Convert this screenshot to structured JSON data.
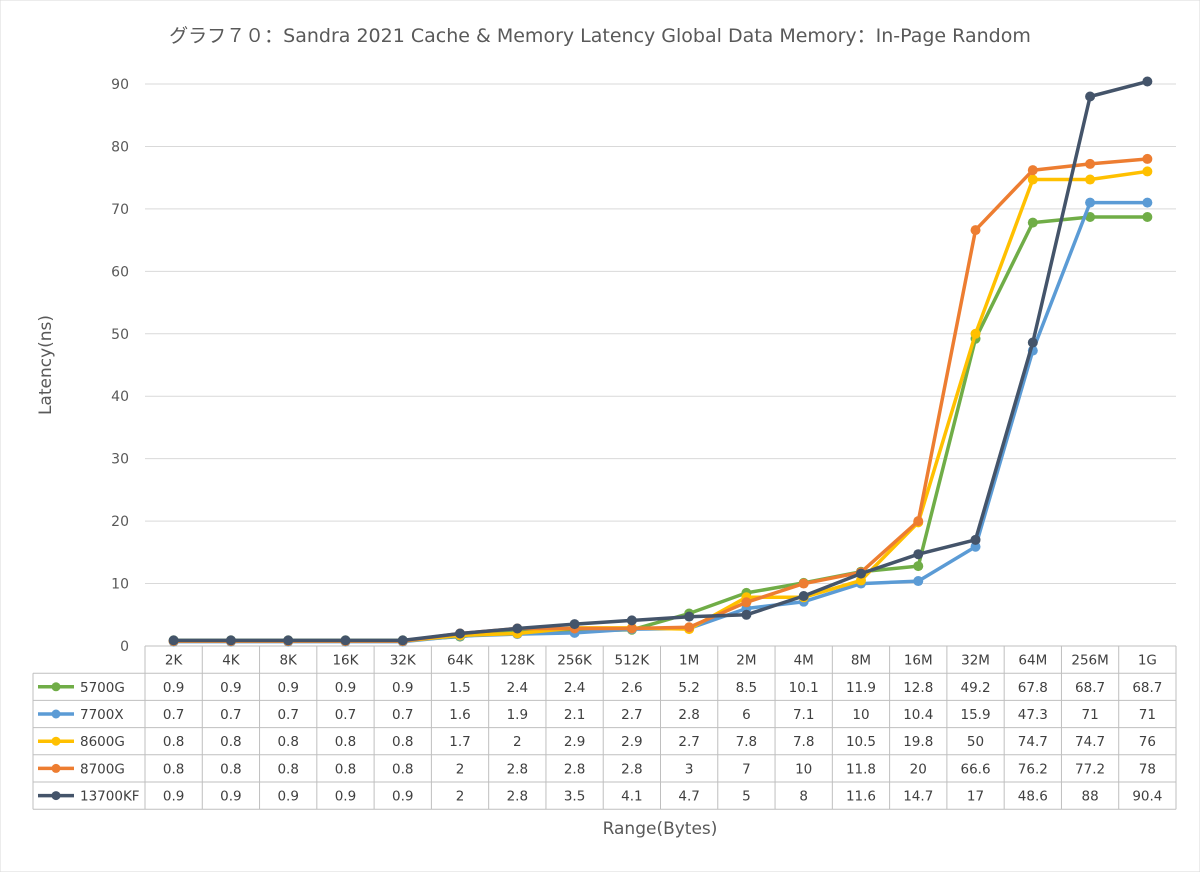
{
  "chart_data": {
    "type": "line",
    "title": "グラフ７０：Sandra 2021 Cache & Memory Latency Global Data Memory：In-Page Random",
    "xlabel": "Range(Bytes)",
    "ylabel": "Latency(ns)",
    "ylim": [
      0,
      90
    ],
    "yticks": [
      "0",
      "10",
      "20",
      "30",
      "40",
      "50",
      "60",
      "70",
      "80",
      "90"
    ],
    "grid": true,
    "legend": "data-table",
    "categories": [
      "2K",
      "4K",
      "8K",
      "16K",
      "32K",
      "64K",
      "128K",
      "256K",
      "512K",
      "1M",
      "2M",
      "4M",
      "8M",
      "16M",
      "32M",
      "64M",
      "256M",
      "1G"
    ],
    "series": [
      {
        "name": "5700G",
        "color": "#70ad47",
        "values": [
          0.9,
          0.9,
          0.9,
          0.9,
          0.9,
          1.5,
          2.4,
          2.4,
          2.6,
          5.2,
          8.5,
          10.1,
          11.9,
          12.8,
          49.2,
          67.8,
          68.7,
          68.7
        ]
      },
      {
        "name": "7700X",
        "color": "#5b9bd5",
        "values": [
          0.7,
          0.7,
          0.7,
          0.7,
          0.7,
          1.6,
          1.9,
          2.1,
          2.7,
          2.8,
          6,
          7.1,
          10,
          10.4,
          15.9,
          47.3,
          71,
          71
        ]
      },
      {
        "name": "8600G",
        "color": "#ffc000",
        "values": [
          0.8,
          0.8,
          0.8,
          0.8,
          0.8,
          1.7,
          2,
          2.9,
          2.9,
          2.7,
          7.8,
          7.8,
          10.5,
          19.8,
          50,
          74.7,
          74.7,
          76
        ]
      },
      {
        "name": "8700G",
        "color": "#ed7d31",
        "values": [
          0.8,
          0.8,
          0.8,
          0.8,
          0.8,
          2,
          2.8,
          2.8,
          2.8,
          3,
          7,
          10,
          11.8,
          20,
          66.6,
          76.2,
          77.2,
          78
        ]
      },
      {
        "name": "13700KF",
        "color": "#44546a",
        "values": [
          0.9,
          0.9,
          0.9,
          0.9,
          0.9,
          2,
          2.8,
          3.5,
          4.1,
          4.7,
          5,
          8,
          11.6,
          14.7,
          17,
          48.6,
          88,
          90.4
        ]
      }
    ]
  }
}
